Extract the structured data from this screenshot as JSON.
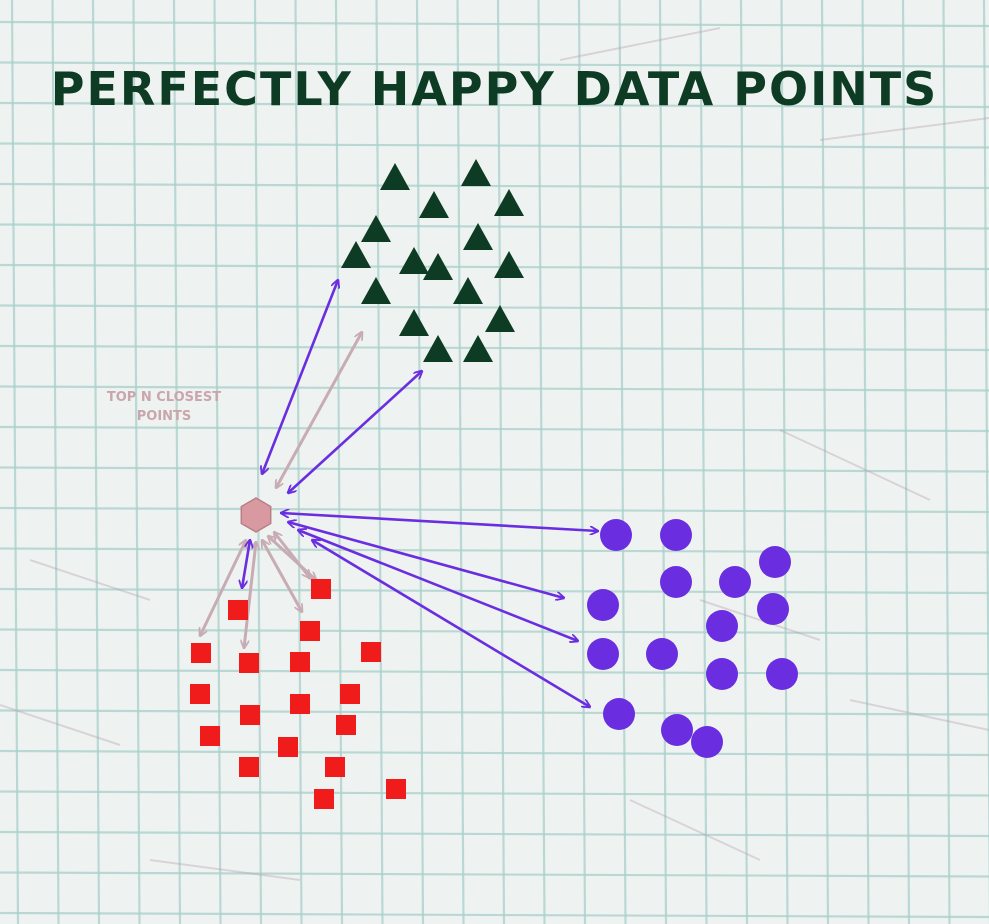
{
  "title": "PERFECTLY HAPPY DATA POINTS",
  "annotation": "TOP N CLOSEST POINTS",
  "colors": {
    "background": "#eef3f1",
    "grid": "#a9cfc9",
    "crease": "#b49aab",
    "triangle": "#0d3b24",
    "circle": "#6a2ee0",
    "square": "#f01c1c",
    "query_point": "#d89aa0",
    "arrow_strong": "#6a2ee0",
    "arrow_faint": "#c7acb4",
    "title": "#0d3b24",
    "annotation": "#c9a6ad"
  },
  "shapes": {
    "triangle": "triangle",
    "circle": "circle",
    "square": "square",
    "query": "hexagon"
  }
}
